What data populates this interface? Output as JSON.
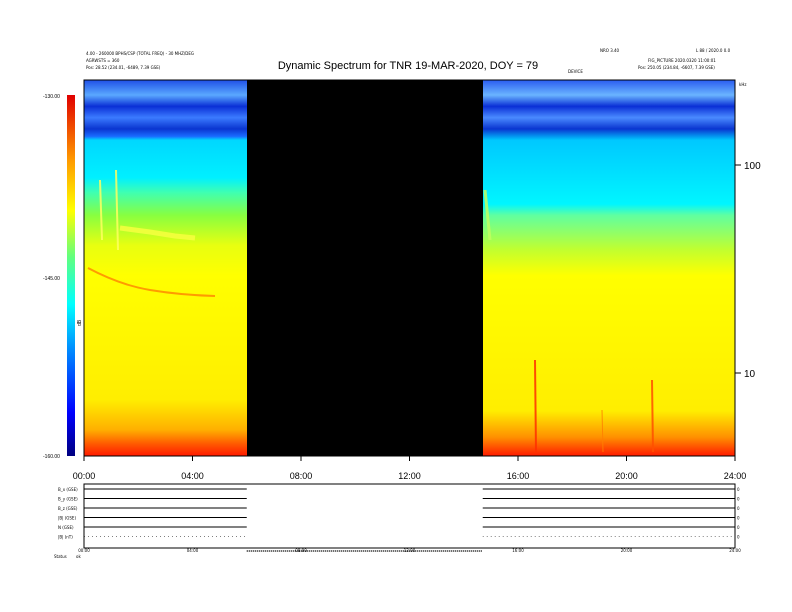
{
  "chart_data": {
    "type": "heatmap",
    "title": "Dynamic Spectrum for TNR 19-MAR-2020, DOY = 79",
    "header_left": [
      "4.00 - 260000 BPHS/CSP (TOTAL FREQ) - 30 MHZ/DEG",
      "AGRWSTS = 360",
      "Pos:  28.52 (234.01, -6489, 7.39 GSE)"
    ],
    "header_right_top": [
      "NRO 3.40",
      "L 88 / 2020.0 0.0"
    ],
    "header_right": [
      "FIG_PICTURE 2020.0320 11:00:01",
      "Pos:  250.05 (234.84, -6607, 7.39 GSE)"
    ],
    "header_center_small": "DEVICE",
    "x_ticks": [
      "00:00",
      "04:00",
      "08:00",
      "12:00",
      "16:00",
      "20:00",
      "24:00"
    ],
    "x_range_hours": [
      0,
      24
    ],
    "data_gap_hours": [
      6.0,
      14.7
    ],
    "y_axis": {
      "scale": "log",
      "unit_label": "kHz",
      "ticks": [
        "100",
        "10"
      ],
      "tick_values": [
        100,
        10
      ],
      "range": [
        4,
        250
      ]
    },
    "colorbar": {
      "label": "dB",
      "ticks": [
        "-130.00",
        "-145.00",
        "-160.00"
      ],
      "tick_values": [
        -130,
        -145,
        -160
      ],
      "range": [
        -160,
        -130
      ],
      "colors": [
        "#00007f",
        "#0000ff",
        "#0088ff",
        "#00ffff",
        "#80ff80",
        "#ffff00",
        "#ffaa00",
        "#ff0000",
        "#7f0000"
      ]
    },
    "bottom_panel": {
      "row_labels": [
        "B_x (GSE)",
        "B_y (GSE)",
        "B_z (GSE)",
        "|B| (GSE)",
        "N (GSE)",
        "|B| (nT)"
      ],
      "x_ticks": [
        "00:00",
        "04:00",
        "08:00",
        "12:00",
        "16:00",
        "20:00",
        "24:00"
      ],
      "status_label": "Status",
      "status_value": "ok"
    }
  }
}
